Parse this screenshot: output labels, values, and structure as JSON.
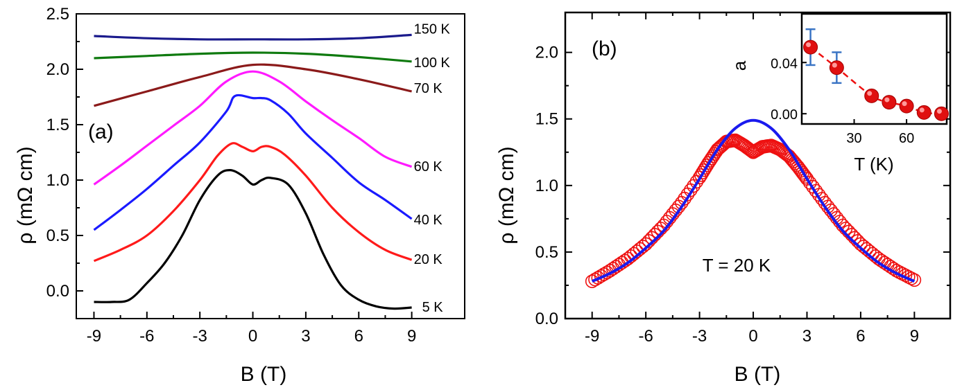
{
  "chart_data": [
    {
      "type": "line",
      "panel_label": "(a)",
      "xlabel": "B (T)",
      "ylabel": "ρ (mΩ cm)",
      "xlim": [
        -10,
        12
      ],
      "ylim": [
        -0.25,
        2.5
      ],
      "x_ticks": [
        -9,
        -6,
        -3,
        0,
        3,
        6,
        9
      ],
      "x_tick_labels": [
        "-9",
        "-6",
        "-3",
        "0",
        "3",
        "6",
        "9"
      ],
      "y_ticks": [
        0.0,
        0.5,
        1.0,
        1.5,
        2.0,
        2.5
      ],
      "y_tick_labels": [
        "0.0",
        "0.5",
        "1.0",
        "1.5",
        "2.0",
        "2.5"
      ],
      "series": [
        {
          "name": "150 K",
          "color": "#1a1a8c",
          "x": [
            -9,
            -6,
            -3,
            0,
            3,
            6,
            9
          ],
          "values": [
            2.3,
            2.28,
            2.27,
            2.27,
            2.27,
            2.28,
            2.31
          ]
        },
        {
          "name": "100 K",
          "color": "#0f7a0f",
          "x": [
            -9,
            -6,
            -3,
            0,
            3,
            6,
            9
          ],
          "values": [
            2.1,
            2.12,
            2.14,
            2.15,
            2.14,
            2.11,
            2.07
          ]
        },
        {
          "name": "70 K",
          "color": "#8b1a1a",
          "x": [
            -9,
            -6,
            -3,
            0,
            3,
            6,
            9
          ],
          "values": [
            1.67,
            1.8,
            1.93,
            2.04,
            2.0,
            1.91,
            1.8
          ]
        },
        {
          "name": "60 K",
          "color": "#ff1aff",
          "x": [
            -9,
            -7.5,
            -6,
            -4.5,
            -3,
            -1.5,
            0,
            1.5,
            3,
            4.5,
            6,
            7.5,
            9
          ],
          "values": [
            0.96,
            1.13,
            1.31,
            1.49,
            1.67,
            1.89,
            1.98,
            1.89,
            1.71,
            1.54,
            1.38,
            1.21,
            1.12
          ]
        },
        {
          "name": "40 K",
          "color": "#1a1aff",
          "x": [
            -9,
            -7.5,
            -6,
            -4.5,
            -3,
            -1.5,
            -1,
            0,
            0.5,
            1,
            2,
            3,
            4.5,
            6,
            7.5,
            9
          ],
          "values": [
            0.55,
            0.73,
            0.92,
            1.13,
            1.34,
            1.62,
            1.76,
            1.74,
            1.74,
            1.72,
            1.6,
            1.42,
            1.2,
            0.98,
            0.82,
            0.65
          ]
        },
        {
          "name": "20 K",
          "color": "#ff1a1a",
          "x": [
            -9,
            -7.5,
            -6,
            -4.5,
            -3,
            -2,
            -1.2,
            -0.6,
            0,
            0.5,
            1,
            1.8,
            3,
            4.5,
            6,
            7.5,
            9
          ],
          "values": [
            0.27,
            0.37,
            0.5,
            0.72,
            1.0,
            1.22,
            1.33,
            1.3,
            1.26,
            1.3,
            1.3,
            1.23,
            1.04,
            0.75,
            0.53,
            0.37,
            0.28
          ]
        },
        {
          "name": "5 K",
          "color": "#000000",
          "x": [
            -9,
            -8,
            -7,
            -6,
            -5,
            -4,
            -3,
            -2,
            -1.3,
            -0.6,
            0,
            0.5,
            1,
            2,
            3,
            4,
            5,
            6,
            7,
            8,
            9
          ],
          "values": [
            -0.1,
            -0.1,
            -0.08,
            0.07,
            0.25,
            0.5,
            0.82,
            1.04,
            1.09,
            1.04,
            0.96,
            1.0,
            1.02,
            0.96,
            0.7,
            0.33,
            0.05,
            -0.08,
            -0.14,
            -0.16,
            -0.15
          ]
        }
      ]
    },
    {
      "type": "scatter",
      "panel_label": "(b)",
      "xlabel": "B (T)",
      "ylabel": "ρ (mΩ cm)",
      "annotation": "T = 20 K",
      "xlim": [
        -10.5,
        11
      ],
      "ylim": [
        0.0,
        2.3
      ],
      "x_ticks": [
        -9,
        -6,
        -3,
        0,
        3,
        6,
        9
      ],
      "x_tick_labels": [
        "-9",
        "-6",
        "-3",
        "0",
        "3",
        "6",
        "9"
      ],
      "y_ticks": [
        0.0,
        0.5,
        1.0,
        1.5,
        2.0
      ],
      "y_tick_labels": [
        "0.0",
        "0.5",
        "1.0",
        "1.5",
        "2.0"
      ],
      "series": [
        {
          "name": "data",
          "marker": "open-circle",
          "color": "#ee1111",
          "x": [
            -9,
            -8,
            -7,
            -6,
            -5,
            -4,
            -3,
            -2.5,
            -2,
            -1.5,
            -1,
            -0.5,
            0,
            0.5,
            1,
            1.5,
            2,
            2.5,
            3,
            4,
            5,
            6,
            7,
            8,
            9
          ],
          "values": [
            0.28,
            0.36,
            0.45,
            0.56,
            0.7,
            0.87,
            1.06,
            1.17,
            1.27,
            1.33,
            1.34,
            1.3,
            1.25,
            1.29,
            1.3,
            1.27,
            1.22,
            1.14,
            1.05,
            0.87,
            0.7,
            0.56,
            0.45,
            0.36,
            0.29
          ]
        },
        {
          "name": "fit",
          "marker": "line",
          "color": "#1a1aee",
          "x": [
            -9,
            -8,
            -7,
            -6,
            -5,
            -4,
            -3,
            -2,
            -1,
            0,
            1,
            2,
            3,
            4,
            5,
            6,
            7,
            8,
            9
          ],
          "values": [
            0.28,
            0.34,
            0.42,
            0.53,
            0.66,
            0.84,
            1.05,
            1.27,
            1.43,
            1.49,
            1.43,
            1.27,
            1.05,
            0.84,
            0.66,
            0.53,
            0.42,
            0.34,
            0.28
          ]
        }
      ]
    },
    {
      "type": "scatter",
      "panel_label": "inset",
      "xlabel": "T (K)",
      "ylabel": "a",
      "xlim": [
        0,
        83
      ],
      "ylim": [
        -0.008,
        0.078
      ],
      "x_ticks": [
        30,
        60
      ],
      "x_tick_labels": [
        "30",
        "60"
      ],
      "y_ticks": [
        0.0,
        0.04
      ],
      "y_tick_labels": [
        "0.00",
        "0.04"
      ],
      "series": [
        {
          "name": "a",
          "marker": "filled-circle",
          "color": "#ee1111",
          "x": [
            5,
            20,
            40,
            50,
            60,
            70,
            80
          ],
          "values": [
            0.052,
            0.036,
            0.014,
            0.009,
            0.006,
            0.001,
            0.0
          ],
          "error": [
            0.014,
            0.012,
            0,
            0,
            0,
            0,
            0
          ]
        }
      ]
    }
  ]
}
